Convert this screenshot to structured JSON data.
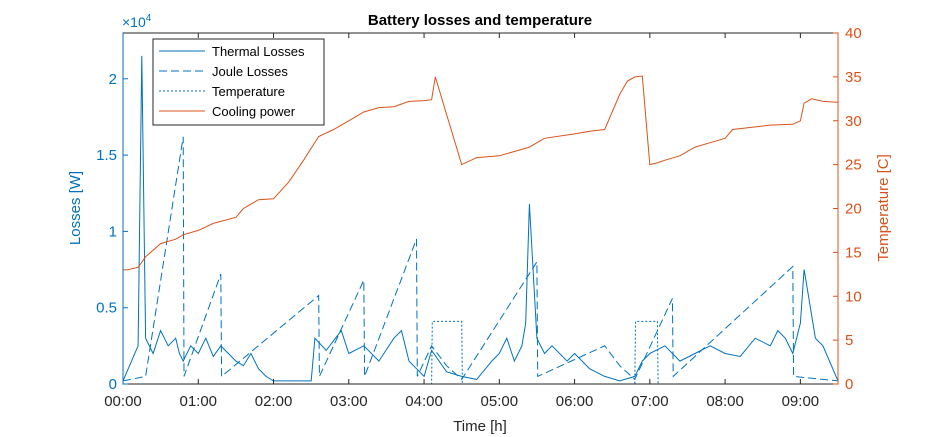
{
  "chart_data": {
    "type": "line",
    "title": "Battery losses and temperature",
    "xlabel": "Time [h]",
    "ylabel_left": "Losses [W]",
    "ylabel_right": "Temperature [C]",
    "left_exponent": "×10",
    "left_exponent_power": "4",
    "xlim": [
      0,
      9.5
    ],
    "ylim_left": [
      0,
      2.3
    ],
    "ylim_right": [
      0,
      40
    ],
    "x_ticks": [
      0,
      1,
      2,
      3,
      4,
      5,
      6,
      7,
      8,
      9
    ],
    "x_tick_labels": [
      "00:00",
      "01:00",
      "02:00",
      "03:00",
      "04:00",
      "05:00",
      "06:00",
      "07:00",
      "08:00",
      "09:00"
    ],
    "yl_ticks": [
      0,
      0.5,
      1,
      1.5,
      2
    ],
    "yl_tick_labels": [
      "0",
      "0.5",
      "1",
      "1.5",
      "2"
    ],
    "yr_ticks": [
      0,
      5,
      10,
      15,
      20,
      25,
      30,
      35,
      40
    ],
    "yr_tick_labels": [
      "0",
      "5",
      "10",
      "15",
      "20",
      "25",
      "30",
      "35",
      "40"
    ],
    "colors": {
      "left": "#0072BD",
      "right": "#D95319",
      "axis": "#262626"
    },
    "legend_position": "top-left",
    "series": [
      {
        "name": "Thermal Losses",
        "style": "solid",
        "axis": "left",
        "x": [
          0.0,
          0.2,
          0.25,
          0.3,
          0.4,
          0.5,
          0.6,
          0.7,
          0.75,
          0.8,
          0.9,
          1.0,
          1.1,
          1.2,
          1.3,
          1.4,
          1.5,
          1.6,
          1.7,
          1.8,
          1.9,
          2.0,
          2.5,
          2.55,
          2.7,
          2.9,
          3.0,
          3.2,
          3.4,
          3.6,
          3.7,
          3.8,
          3.9,
          4.0,
          4.1,
          4.3,
          4.5,
          4.7,
          4.9,
          5.0,
          5.1,
          5.2,
          5.3,
          5.35,
          5.4,
          5.5,
          5.6,
          5.7,
          5.9,
          6.0,
          6.2,
          6.4,
          6.6,
          6.8,
          6.9,
          7.0,
          7.2,
          7.4,
          7.6,
          7.8,
          8.0,
          8.2,
          8.4,
          8.6,
          8.7,
          8.8,
          8.9,
          9.0,
          9.05,
          9.1,
          9.2,
          9.3,
          9.5
        ],
        "y": [
          0.02,
          0.25,
          2.15,
          0.3,
          0.2,
          0.35,
          0.25,
          0.3,
          0.2,
          0.15,
          0.25,
          0.2,
          0.3,
          0.18,
          0.25,
          0.2,
          0.15,
          0.12,
          0.2,
          0.1,
          0.05,
          0.02,
          0.02,
          0.3,
          0.22,
          0.35,
          0.2,
          0.25,
          0.15,
          0.3,
          0.35,
          0.15,
          0.1,
          0.05,
          0.22,
          0.08,
          0.05,
          0.03,
          0.15,
          0.2,
          0.3,
          0.15,
          0.25,
          0.4,
          1.18,
          0.3,
          0.2,
          0.25,
          0.15,
          0.2,
          0.1,
          0.05,
          0.02,
          0.05,
          0.15,
          0.2,
          0.25,
          0.15,
          0.2,
          0.25,
          0.2,
          0.18,
          0.3,
          0.25,
          0.35,
          0.3,
          0.2,
          0.4,
          0.75,
          0.6,
          0.3,
          0.25,
          0.02
        ]
      },
      {
        "name": "Joule Losses",
        "style": "dashed",
        "axis": "left",
        "x": [
          0.0,
          0.3,
          0.8,
          0.81,
          1.3,
          1.31,
          2.6,
          2.61,
          3.2,
          3.21,
          3.9,
          3.91,
          4.1,
          4.3,
          4.5,
          5.5,
          5.51,
          6.4,
          6.6,
          6.8,
          7.3,
          7.31,
          8.9,
          8.91,
          9.5
        ],
        "y": [
          0.02,
          0.05,
          1.62,
          0.05,
          0.72,
          0.05,
          0.58,
          0.05,
          0.68,
          0.05,
          0.95,
          0.05,
          0.25,
          0.12,
          0.03,
          0.8,
          0.05,
          0.25,
          0.12,
          0.03,
          0.56,
          0.05,
          0.77,
          0.05,
          0.02
        ]
      },
      {
        "name": "Temperature",
        "style": "dotted",
        "axis": "left",
        "x": [
          0.0,
          4.1,
          4.11,
          4.5,
          4.51,
          6.8,
          6.81,
          7.1,
          7.11,
          9.5
        ],
        "y": [
          0.0,
          0.0,
          0.41,
          0.41,
          0.0,
          0.0,
          0.41,
          0.41,
          0.0,
          0.0
        ]
      },
      {
        "name": "Cooling power",
        "style": "solid",
        "axis": "right",
        "x": [
          0.0,
          0.05,
          0.2,
          0.3,
          0.5,
          0.7,
          0.8,
          1.0,
          1.2,
          1.5,
          1.6,
          1.8,
          2.0,
          2.2,
          2.4,
          2.6,
          2.8,
          3.0,
          3.2,
          3.4,
          3.6,
          3.8,
          4.0,
          4.1,
          4.15,
          4.5,
          4.7,
          5.0,
          5.2,
          5.4,
          5.6,
          6.0,
          6.2,
          6.4,
          6.6,
          6.7,
          6.8,
          6.9,
          7.0,
          7.1,
          7.2,
          7.4,
          7.6,
          7.8,
          8.0,
          8.1,
          8.3,
          8.6,
          8.9,
          9.0,
          9.05,
          9.15,
          9.3,
          9.5
        ],
        "y": [
          13.0,
          13.0,
          13.3,
          14.5,
          16.0,
          16.5,
          17.0,
          17.5,
          18.3,
          19.0,
          20.0,
          21.0,
          21.1,
          23.0,
          25.5,
          28.2,
          29.0,
          30.0,
          31.0,
          31.5,
          31.6,
          32.2,
          32.3,
          32.4,
          35.0,
          25.0,
          25.8,
          26.0,
          26.5,
          27.0,
          28.0,
          28.5,
          28.8,
          29.0,
          33.0,
          34.5,
          35.0,
          35.1,
          25.0,
          25.2,
          25.5,
          26.0,
          27.0,
          27.5,
          28.0,
          29.0,
          29.2,
          29.5,
          29.6,
          30.0,
          32.0,
          32.5,
          32.2,
          32.1
        ]
      }
    ]
  }
}
